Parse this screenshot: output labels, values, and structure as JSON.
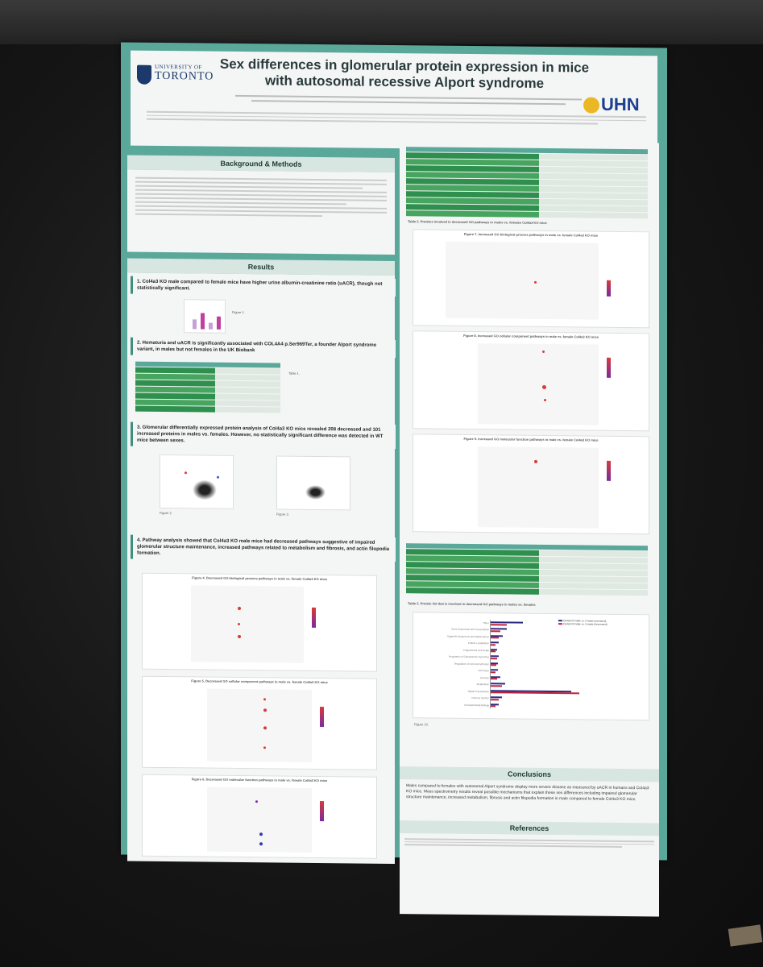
{
  "poster": {
    "title_line1": "Sex differences in glomerular protein expression in mice",
    "title_line2": "with autosomal recessive Alport syndrome",
    "logo_left": {
      "univ": "UNIVERSITY OF",
      "name": "TORONTO"
    },
    "logo_right": "UHN",
    "sections": {
      "background": "Background & Methods",
      "results": "Results",
      "conclusions": "Conclusions",
      "references": "References"
    },
    "findings": {
      "f1": "1. Col4a3 KO male compared to female mice have higher urine albumin-creatinine ratio (uACR), though not statistically significant.",
      "f2": "2. Hematuria and uACR is significantly associated with COL4A4 p.Ser969Ter, a founder Alport syndrome variant, in males but not females in the UK Biobank",
      "f3": "3. Glomerular differentially expressed protein analysis of Col4a3 KO mice revealed 208 decreased and 101 increased proteins in males vs. females. However, no statistically significant difference was detected in WT mice between sexes.",
      "f4": "4. Pathway analysis showed that Col4a3 KO male mice had decreased pathways suggestive of impaired glomerular structure maintenance, increased pathways related to metabolism and fibrosis, and actin filopodia formation."
    },
    "captions": {
      "table2": "Table 2. Proteins involved in decreased GO pathways in males vs. females Col4a3 KO mice",
      "table_protein_list": "Table 2. Protein list that is involved in decreased GO pathways in males vs. females",
      "fig7": "Figure 7. Increased GO biological process pathways in male vs. female Col4a3 KO mice",
      "fig8": "Figure 8. Increased GO cellular component pathways in male vs. female Col4a3 KO mice",
      "fig9": "Figure 9. Increased GO molecular function pathways in male vs. female Col4a3 KO mice",
      "fig4": "Figure 4. Decreased GO biological process pathways in male vs. female Col4a3 KO mice",
      "fig5": "Figure 5. Decreased GO cellular component pathways in male vs. female Col4a3 KO mice",
      "fig6": "Figure 6. Decreased GO molecular function pathways in male vs. female Col4a3 KO mice",
      "fig1": "Figure 1.",
      "fig2": "Figure 2.",
      "fig3": "Figure 3.",
      "fig10": "Figure 10.",
      "table1": "Table 1."
    },
    "conclusions_text": "Males compared to females with autosomal Alport syndrome display more severe disease as measured by uACR in humans and Col4a3 KO mice. Mass spectrometry results reveal possible mechanisms that explain these sex differences including impaired glomerular structure maintenance, increased metabolism, fibrosis and actin filopodia formation in male compared to female Col4a3 KO mice.",
    "bar_legend": [
      "Col4a3 KO Male vs. Female (Increased)",
      "Col4a3 KO Male vs. Female (Decreased)"
    ],
    "bar_categories": [
      "Other",
      "Gene Expression and Transcription",
      "Organelle Biogenesis and Maintenance",
      "Protein Localization",
      "Programmed Cell Death",
      "Regulation of Cytoskeleton Dynamics",
      "Regulation of Cell-Cell Adhesion",
      "Cell Cycle",
      "Disease",
      "Metabolism",
      "Signal Transduction",
      "Immune System",
      "Developmental Biology"
    ]
  },
  "colors": {
    "frame": "#5aa89a",
    "title_band": "#d8e6e1",
    "table_green": "#2f8f4f",
    "increase": "#2a2a80",
    "decrease": "#c0203a"
  }
}
